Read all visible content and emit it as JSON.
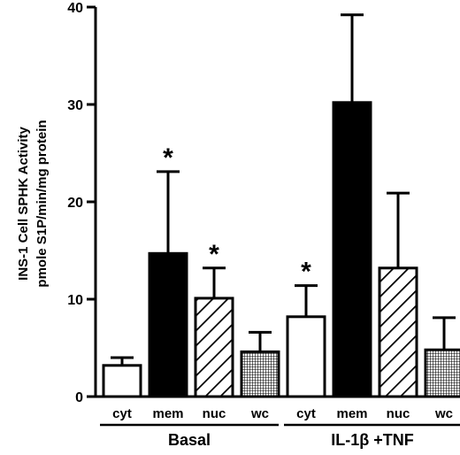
{
  "chart_data": {
    "type": "bar",
    "ylabel_line1": "INS-1 Cell SPHK Activity",
    "ylabel_line2": "pmole S1P/min/mg protein",
    "ylim": [
      0,
      40
    ],
    "yticks": [
      0,
      10,
      20,
      30,
      40
    ],
    "groups": [
      {
        "name": "Basal",
        "bars": [
          {
            "category": "cyt",
            "value": 3.2,
            "error": 0.8,
            "fill": "white",
            "star": false
          },
          {
            "category": "mem",
            "value": 14.7,
            "error": 8.4,
            "fill": "black",
            "star": true
          },
          {
            "category": "nuc",
            "value": 10.1,
            "error": 3.1,
            "fill": "hatch",
            "star": true
          },
          {
            "category": "wc",
            "value": 4.6,
            "error": 2.0,
            "fill": "crosshatch",
            "star": false
          }
        ]
      },
      {
        "name": "IL-1β +TNF",
        "bars": [
          {
            "category": "cyt",
            "value": 8.2,
            "error": 3.2,
            "fill": "white",
            "star": true
          },
          {
            "category": "mem",
            "value": 30.2,
            "error": 9.0,
            "fill": "black",
            "star": false
          },
          {
            "category": "nuc",
            "value": 13.2,
            "error": 7.7,
            "fill": "hatch",
            "star": false
          },
          {
            "category": "wc",
            "value": 4.8,
            "error": 3.3,
            "fill": "crosshatch",
            "star": false
          }
        ]
      }
    ],
    "significance_marker": "*"
  }
}
